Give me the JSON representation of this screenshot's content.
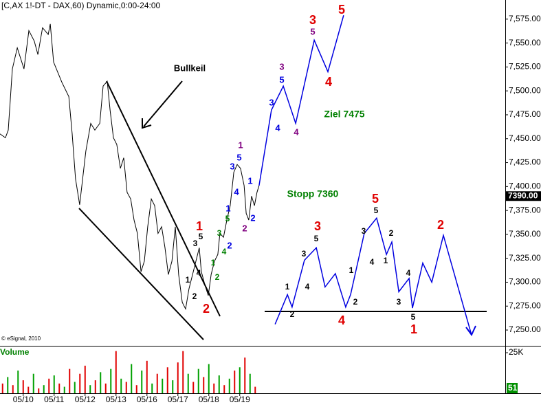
{
  "chart_data": {
    "type": "line",
    "title": "[C,AX 1!-DT - DAX,60) Dynamic,0:00-24:00",
    "credit": "© eSignal, 2010",
    "xlim": [
      -9,
      187
    ],
    "xticks": [
      {
        "value": 0,
        "label": "05/10"
      },
      {
        "value": 12,
        "label": "05/11"
      },
      {
        "value": 24,
        "label": "05/12"
      },
      {
        "value": 36,
        "label": "05/13"
      },
      {
        "value": 48,
        "label": "05/16"
      },
      {
        "value": 60,
        "label": "05/17"
      },
      {
        "value": 72,
        "label": "05/18"
      },
      {
        "value": 84,
        "label": "05/19"
      }
    ],
    "ylim": [
      7233.5,
      7595
    ],
    "yticks": [
      {
        "value": 7250,
        "label": "7,250.00"
      },
      {
        "value": 7275,
        "label": "7,275.00"
      },
      {
        "value": 7300,
        "label": "7,300.00"
      },
      {
        "value": 7325,
        "label": "7,325.00"
      },
      {
        "value": 7350,
        "label": "7,350.00"
      },
      {
        "value": 7375,
        "label": "7,375.00"
      },
      {
        "value": 7400,
        "label": "7,400.00"
      },
      {
        "value": 7425,
        "label": "7,425.00"
      },
      {
        "value": 7450,
        "label": "7,450.00"
      },
      {
        "value": 7475,
        "label": "7,475.00"
      },
      {
        "value": 7500,
        "label": "7,500.00"
      },
      {
        "value": 7525,
        "label": "7,525.00"
      },
      {
        "value": 7550,
        "label": "7,550.00"
      },
      {
        "value": 7575,
        "label": "7,575.00"
      }
    ],
    "last_price": {
      "value": 7390,
      "label": "7390.00"
    },
    "series": [
      {
        "color": "#000000",
        "x": [
          -9,
          -6.9,
          -5.8,
          -4.2,
          -2.3,
          0.3,
          2.2,
          4.3,
          5.7,
          7.5,
          9.7,
          10.5,
          11.8,
          15,
          17.7,
          19,
          20.3,
          21.9,
          24.3,
          26.2,
          27.8,
          29.7,
          31,
          32.6,
          33.7,
          35,
          36.3,
          37.7,
          39,
          40.3,
          41.7,
          43,
          44.3,
          45.7,
          47,
          48.3,
          49.7,
          51,
          52.3,
          53.7,
          55,
          56.3,
          57.7,
          59,
          60.3,
          61.7,
          63,
          64.3,
          65.7,
          67,
          68.3,
          69.1,
          70.5,
          71.8,
          72.9,
          74.2,
          75.5,
          76.3,
          77.7,
          79,
          80.3,
          81.7,
          83,
          84.3,
          85.7,
          86.5,
          87.5,
          88.6,
          89.7,
          90.7,
          91.5
        ],
        "values": [
          7455,
          7451,
          7459,
          7523,
          7545,
          7523,
          7563,
          7552,
          7538,
          7566,
          7559,
          7570,
          7530,
          7509,
          7494,
          7455,
          7408,
          7381,
          7437,
          7466,
          7459,
          7466,
          7505,
          7510,
          7480,
          7451,
          7444,
          7419,
          7430,
          7394,
          7387,
          7365,
          7351,
          7311,
          7322,
          7358,
          7387,
          7380,
          7351,
          7358,
          7336,
          7308,
          7322,
          7358,
          7308,
          7279,
          7272,
          7293,
          7308,
          7322,
          7336,
          7311,
          7297,
          7286,
          7308,
          7322,
          7329,
          7351,
          7347,
          7365,
          7380,
          7415,
          7423,
          7419,
          7401,
          7372,
          7365,
          7390,
          7380,
          7394,
          7401
        ]
      },
      {
        "color": "#0000e0",
        "x": [
          91.5,
          96.3,
          100.9,
          105.7,
          112.9,
          118.2,
          124.3
        ],
        "values": [
          7401,
          7480,
          7505,
          7466,
          7553,
          7520,
          7579
        ]
      },
      {
        "color": "#0000e0",
        "x": [
          97.7,
          102.5,
          104.3,
          109.1,
          113.7,
          117.1,
          121.1,
          125.1,
          127,
          132.3,
          137.1,
          140.9,
          143,
          145.7,
          149.7,
          151,
          155,
          158.5,
          163,
          173.9
        ],
        "values": [
          7256,
          7287,
          7274,
          7323,
          7336,
          7295,
          7309,
          7274,
          7287,
          7351,
          7367,
          7329,
          7342,
          7290,
          7304,
          7273,
          7320,
          7300,
          7349,
          7245
        ]
      }
    ],
    "volume": {
      "title": "Volume",
      "ylim": [
        0,
        28.4
      ],
      "yticks": [
        {
          "value": 25,
          "label": "25K"
        }
      ],
      "last_label": "51",
      "x": [
        -8,
        -6,
        -4,
        -2,
        0,
        2,
        4,
        6,
        8,
        10,
        12,
        14,
        16,
        18,
        20,
        22,
        24,
        26,
        28,
        30,
        32,
        34,
        36,
        38,
        40,
        42,
        44,
        46,
        48,
        50,
        52,
        54,
        56,
        58,
        60,
        62,
        64,
        66,
        68,
        70,
        72,
        74,
        76,
        78,
        80,
        82,
        84,
        86,
        88,
        90
      ],
      "values": [
        6,
        10,
        5,
        14,
        8,
        4,
        12,
        3,
        5,
        9,
        11,
        6,
        4,
        15,
        7,
        12,
        17,
        5,
        8,
        13,
        6,
        15,
        26,
        9,
        7,
        18,
        5,
        14,
        20,
        6,
        12,
        9,
        16,
        8,
        19,
        26,
        12,
        7,
        15,
        10,
        18,
        6,
        11,
        5,
        9,
        14,
        16,
        22,
        12,
        4
      ],
      "colors": [
        "#e00000",
        "#00a000",
        "#e00000",
        "#00a000",
        "#e00000",
        "#e00000",
        "#00a000",
        "#e00000",
        "#00a000",
        "#e00000",
        "#00a000",
        "#e00000",
        "#00a000",
        "#e00000",
        "#00a000",
        "#e00000",
        "#e00000",
        "#00a000",
        "#e00000",
        "#00a000",
        "#e00000",
        "#00a000",
        "#e00000",
        "#00a000",
        "#e00000",
        "#00a000",
        "#e00000",
        "#00a000",
        "#e00000",
        "#00a000",
        "#e00000",
        "#00a000",
        "#e00000",
        "#00a000",
        "#e00000",
        "#e00000",
        "#00a000",
        "#e00000",
        "#00a000",
        "#e00000",
        "#00a000",
        "#e00000",
        "#00a000",
        "#e00000",
        "#00a000",
        "#e00000",
        "#00a000",
        "#e00000",
        "#00a000",
        "#e00000"
      ]
    },
    "annotations": [
      {
        "text": "1",
        "color": "#e00000"
      },
      {
        "text": "2",
        "color": "#e00000"
      },
      {
        "text": "3",
        "color": "#e00000"
      },
      {
        "text": "5",
        "color": "#e00000"
      },
      {
        "text": "4",
        "color": "#e00000"
      },
      {
        "text": "3",
        "color": "#e00000"
      },
      {
        "text": "5",
        "color": "#e00000"
      },
      {
        "text": "4",
        "color": "#e00000"
      },
      {
        "text": "2",
        "color": "#e00000"
      },
      {
        "text": "1",
        "color": "#e00000"
      },
      {
        "text": "5",
        "color": "#000000"
      },
      {
        "text": "3",
        "color": "#000000"
      },
      {
        "text": "4",
        "color": "#000000"
      },
      {
        "text": "1",
        "color": "#000000"
      },
      {
        "text": "2",
        "color": "#000000"
      },
      {
        "text": "1",
        "color": "#000000"
      },
      {
        "text": "2",
        "color": "#000000"
      },
      {
        "text": "3",
        "color": "#000000"
      },
      {
        "text": "5",
        "color": "#000000"
      },
      {
        "text": "4",
        "color": "#000000"
      },
      {
        "text": "1",
        "color": "#000000"
      },
      {
        "text": "2",
        "color": "#000000"
      },
      {
        "text": "3",
        "color": "#000000"
      },
      {
        "text": "5",
        "color": "#000000"
      },
      {
        "text": "4",
        "color": "#000000"
      },
      {
        "text": "1",
        "color": "#000000"
      },
      {
        "text": "2",
        "color": "#000000"
      },
      {
        "text": "4",
        "color": "#000000"
      },
      {
        "text": "3",
        "color": "#000000"
      },
      {
        "text": "5",
        "color": "#000000"
      },
      {
        "text": "1",
        "color": "#008000"
      },
      {
        "text": "2",
        "color": "#008000"
      },
      {
        "text": "3",
        "color": "#008000"
      },
      {
        "text": "5",
        "color": "#008000"
      },
      {
        "text": "4",
        "color": "#008000"
      },
      {
        "text": "1",
        "color": "#0000e0"
      },
      {
        "text": "2",
        "color": "#0000e0"
      },
      {
        "text": "3",
        "color": "#0000e0"
      },
      {
        "text": "5",
        "color": "#0000e0"
      },
      {
        "text": "4",
        "color": "#0000e0"
      },
      {
        "text": "1",
        "color": "#0000e0"
      },
      {
        "text": "2",
        "color": "#0000e0"
      },
      {
        "text": "3",
        "color": "#0000e0"
      },
      {
        "text": "5",
        "color": "#0000e0"
      },
      {
        "text": "4",
        "color": "#0000e0"
      },
      {
        "text": "1",
        "color": "#800080"
      },
      {
        "text": "2",
        "color": "#800080"
      },
      {
        "text": "3",
        "color": "#800080"
      },
      {
        "text": "5",
        "color": "#800080"
      },
      {
        "text": "4",
        "color": "#800080"
      },
      {
        "text": "Ziel 7475",
        "color": "#008000"
      },
      {
        "text": "Stopp 7360",
        "color": "#008000"
      },
      {
        "text": "Bullkeil",
        "color": "#000000"
      }
    ]
  }
}
